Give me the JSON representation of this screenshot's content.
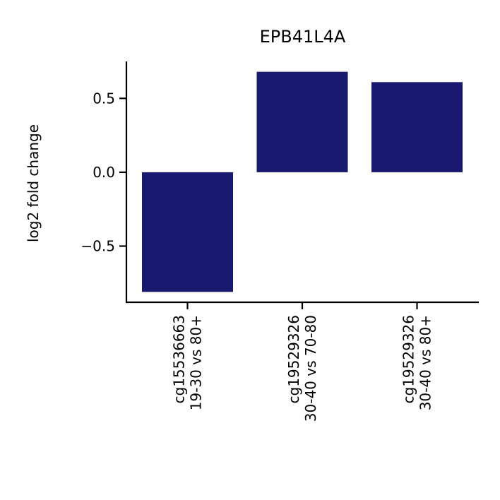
{
  "chart_data": {
    "type": "bar",
    "title": "EPB41L4A",
    "ylabel": "log2 fold change",
    "xlabel": "",
    "categories": [
      [
        "cg15536663",
        "19-30 vs 80+"
      ],
      [
        "cg19529326",
        "30-40 vs 70-80"
      ],
      [
        "cg19529326",
        "30-40 vs 80+"
      ]
    ],
    "values": [
      -0.81,
      0.68,
      0.61
    ],
    "ylim": [
      -0.88,
      0.75
    ],
    "yticks": [
      0.5,
      0.0,
      -0.5
    ],
    "ytick_labels": [
      "0.5",
      "0.0",
      "−0.5"
    ],
    "bar_color": "#191970",
    "grid": false
  }
}
